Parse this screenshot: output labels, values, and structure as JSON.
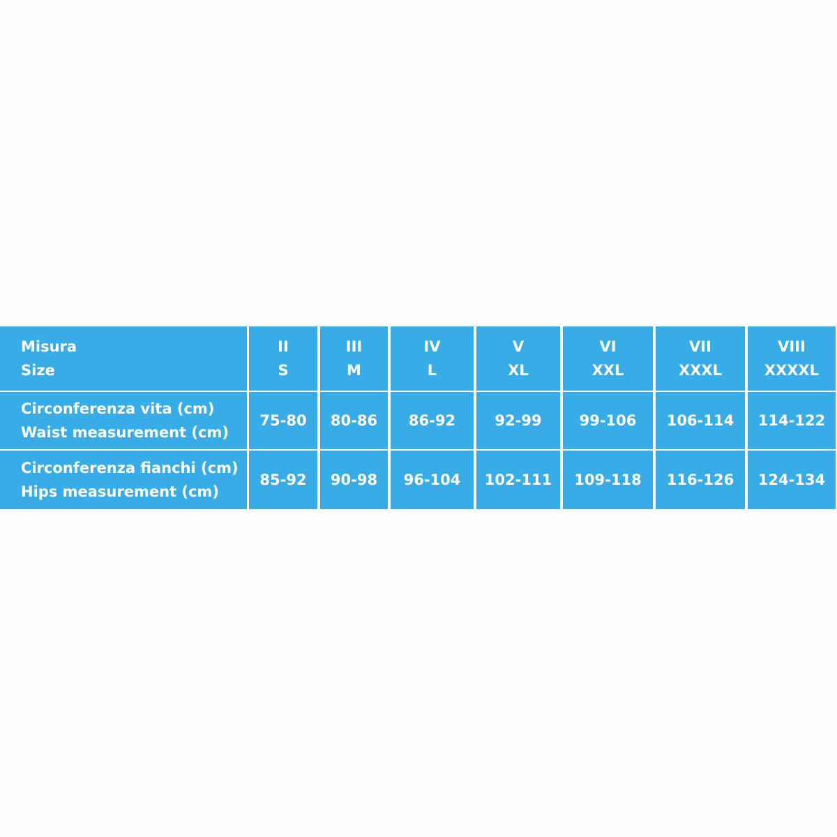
{
  "table": {
    "header": [
      [
        "Misura",
        "Size"
      ],
      [
        "II",
        "S"
      ],
      [
        "III",
        "M"
      ],
      [
        "IV",
        "L"
      ],
      [
        "V",
        "XL"
      ],
      [
        "VI",
        "XXL"
      ],
      [
        "VII",
        "XXXL"
      ],
      [
        "VIII",
        "XXXXL"
      ]
    ],
    "rows": [
      {
        "label": [
          "Circonferenza vita (cm)",
          "Waist measurement (cm)"
        ],
        "values": [
          "75-80",
          "80-86",
          "86-92",
          "92-99",
          "99-106",
          "106-114",
          "114-122"
        ]
      },
      {
        "label": [
          "Circonferenza fianchi (cm)",
          "Hips measurement (cm)"
        ],
        "values": [
          "85-92",
          "90-98",
          "96-104",
          "102-111",
          "109-118",
          "116-126",
          "124-134"
        ]
      }
    ]
  }
}
